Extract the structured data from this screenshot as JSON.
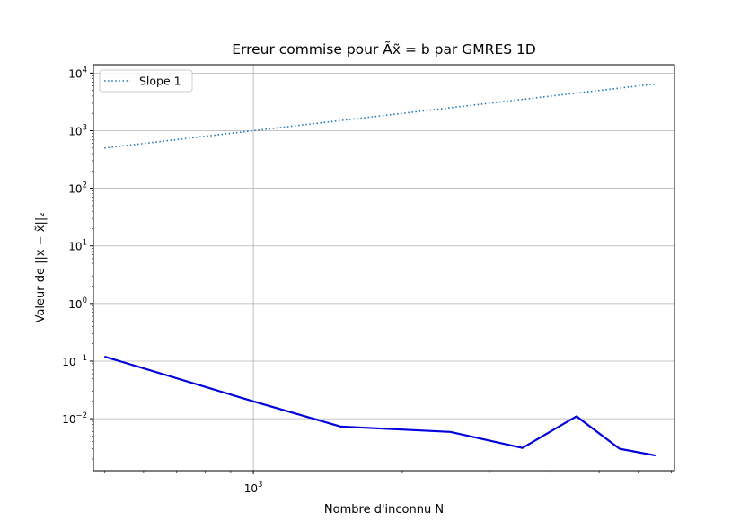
{
  "chart_data": {
    "type": "line",
    "title": "Erreur commise pour Ãx̃ = b par GMRES 1D",
    "xlabel": "Nombre d'inconnu N",
    "ylabel": "Valeur de ||x − x̃||₂",
    "xscale": "log",
    "yscale": "log",
    "xlim": [
      475,
      7100
    ],
    "ylim": [
      0.00125,
      14000
    ],
    "grid": true,
    "legend_position": "top-left",
    "x_tick_labels": [
      {
        "value": 1000,
        "base": "10",
        "exp": "3"
      }
    ],
    "y_tick_labels": [
      {
        "value": 0.01,
        "base": "10",
        "exp": "−2"
      },
      {
        "value": 0.1,
        "base": "10",
        "exp": "−1"
      },
      {
        "value": 1,
        "base": "10",
        "exp": "0"
      },
      {
        "value": 10,
        "base": "10",
        "exp": "1"
      },
      {
        "value": 100,
        "base": "10",
        "exp": "2"
      },
      {
        "value": 1000,
        "base": "10",
        "exp": "3"
      },
      {
        "value": 10000,
        "base": "10",
        "exp": "4"
      }
    ],
    "series": [
      {
        "name": "Slope 1",
        "style": "dotted",
        "color": "#1f77b4",
        "x": [
          500,
          1000,
          1500,
          2500,
          3500,
          4500,
          5500,
          6500
        ],
        "y": [
          500,
          1000,
          1500,
          2500,
          3500,
          4500,
          5500,
          6500
        ]
      },
      {
        "name": "",
        "style": "solid",
        "color": "#0000dd",
        "x": [
          500,
          1000,
          1500,
          2500,
          3500,
          4500,
          5500,
          6500
        ],
        "y": [
          0.12,
          0.02,
          0.0073,
          0.0059,
          0.0031,
          0.011,
          0.003,
          0.0023
        ]
      }
    ]
  }
}
